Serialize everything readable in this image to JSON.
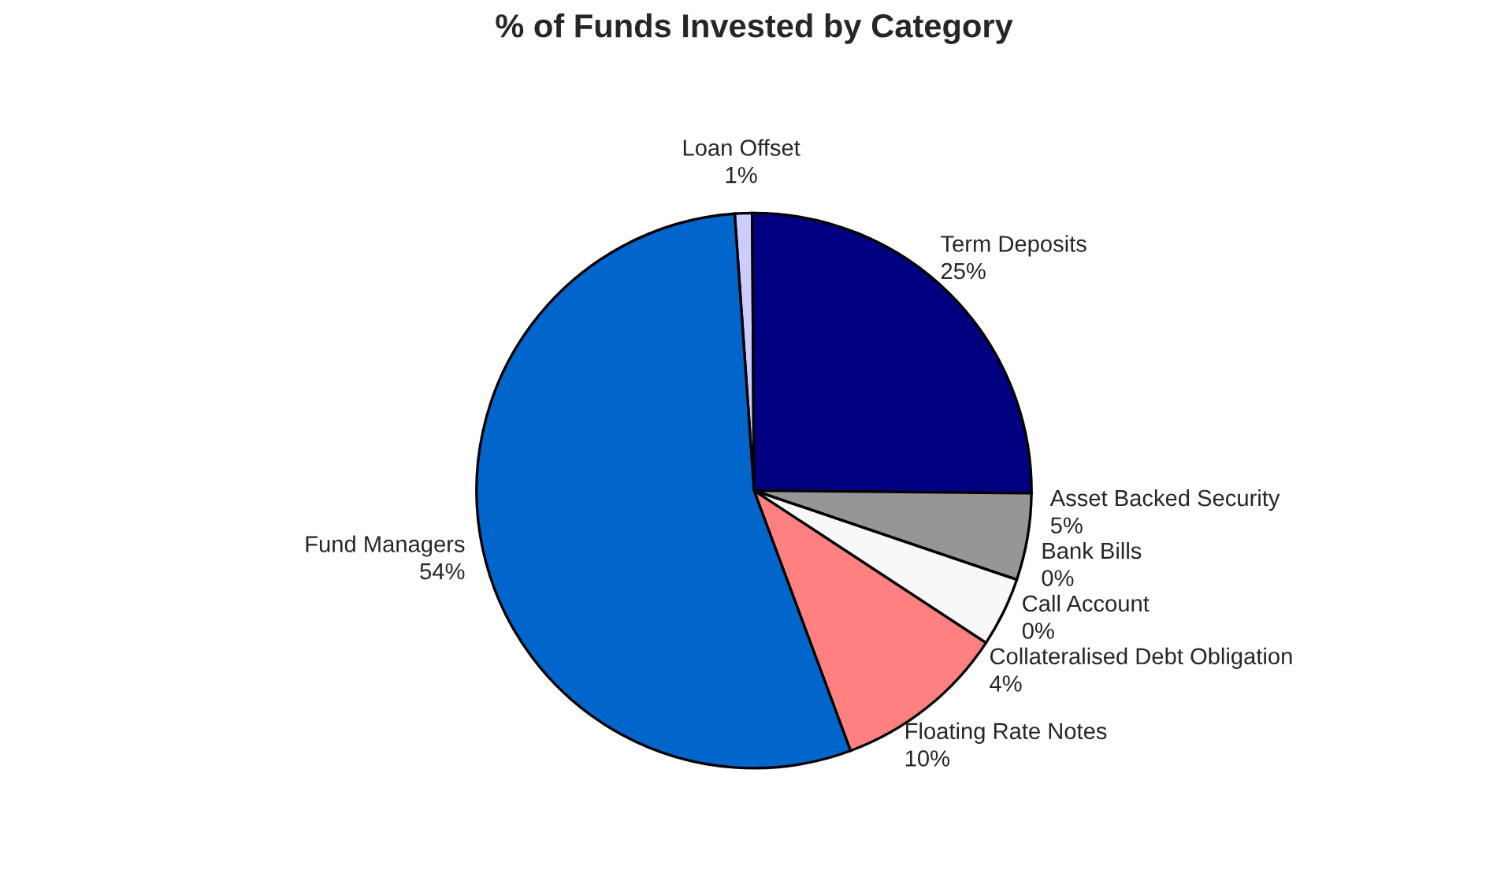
{
  "chart_data": {
    "type": "pie",
    "title": "% of Funds Invested by Category",
    "categories": [
      "Loan Offset",
      "Term Deposits",
      "Asset Backed Security",
      "Bank Bills",
      "Call Account",
      "Collateralised Debt Obligation",
      "Floating Rate Notes",
      "Fund Managers"
    ],
    "values": [
      1,
      25,
      5,
      0,
      0,
      4,
      10,
      54
    ],
    "value_labels": [
      "1%",
      "25%",
      "5%",
      "0%",
      "0%",
      "4%",
      "10%",
      "54%"
    ],
    "colors": [
      "#ccccff",
      "#000080",
      "#969696",
      "#e0e0e0",
      "#ffffff",
      "#f8f8f8",
      "#ff8080",
      "#0066cc"
    ],
    "legend": false
  }
}
